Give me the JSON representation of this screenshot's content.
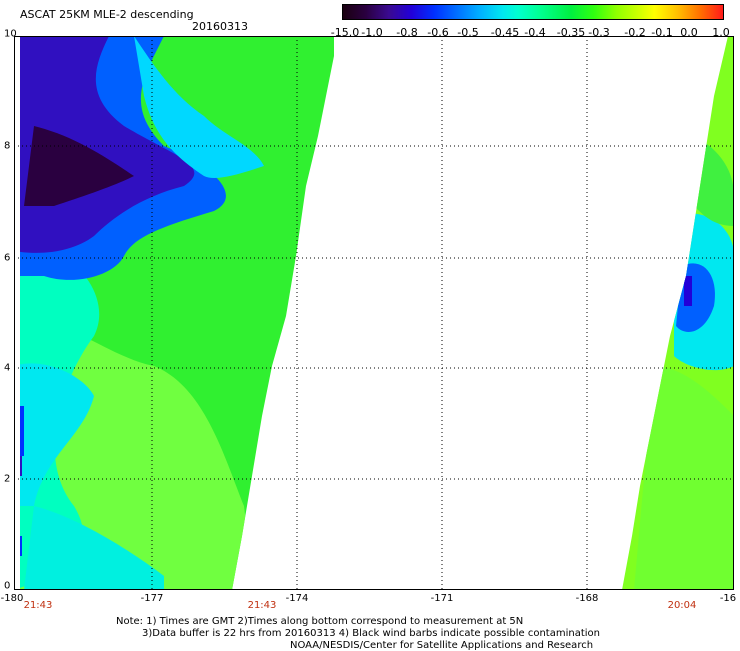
{
  "header": {
    "title": "ASCAT 25KM MLE-2 descending",
    "date": "20160313"
  },
  "colorbar": {
    "labels": [
      "-15.0",
      "-1.0",
      "-0.8",
      "-0.6",
      "-0.5",
      "-0.45",
      "-0.4",
      "-0.35",
      "-0.3",
      "-0.2",
      "-0.1",
      "0.0",
      "1.0"
    ],
    "low_color": "#1a0010",
    "high_color": "#ff1a1a"
  },
  "axes": {
    "y_ticks": [
      "10",
      "8",
      "6",
      "4",
      "2",
      "0"
    ],
    "x_ticks": [
      "-180",
      "-177",
      "-174",
      "-171",
      "-168",
      "-16"
    ]
  },
  "pass_times": [
    "21:43",
    "21:43",
    "20:04"
  ],
  "footer": {
    "note_line1": "Note: 1) Times are GMT 2)Times along bottom correspond to measurement at 5N",
    "note_line2": "3)Data buffer is 22 hrs from 20160313 4) Black wind barbs indicate possible contamination",
    "credit": "NOAA/NESDIS/Center for Satellite Applications and Research"
  }
}
